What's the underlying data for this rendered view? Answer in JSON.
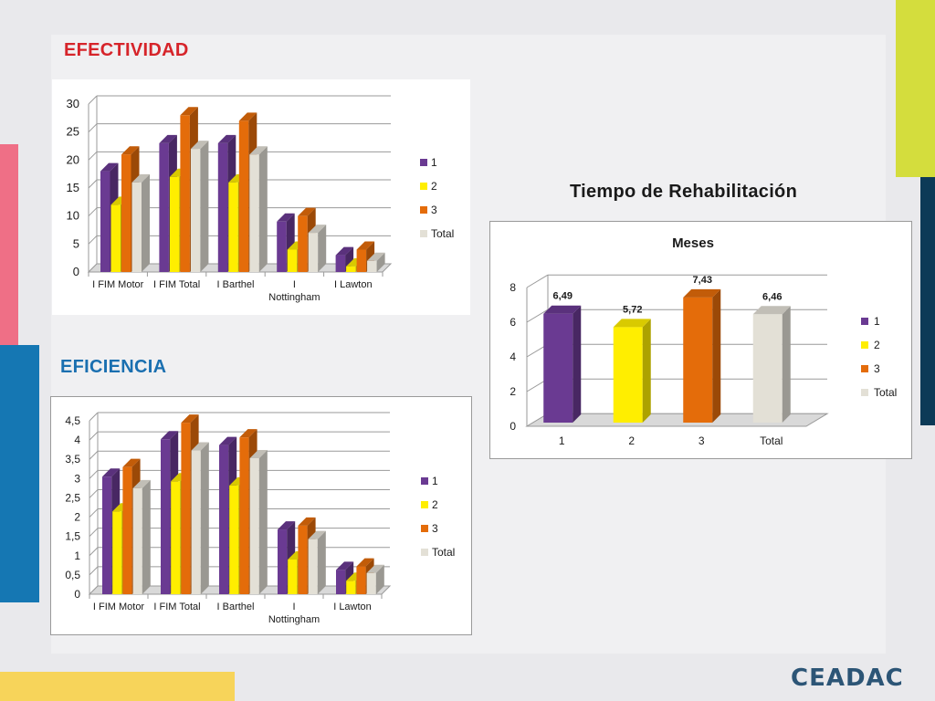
{
  "headings": {
    "efectividad": "EFECTIVIDAD",
    "eficiencia": "EFICIENCIA",
    "tiempo": "Tiempo de Rehabilitación"
  },
  "logo": "CEADAC",
  "colors": {
    "series_1": "#6a3a92",
    "series_2": "#ffee00",
    "series_3": "#e46c0a",
    "series_total": "#e3e0d6",
    "heading_red": "#d6242a",
    "heading_blue": "#1a6fb0"
  },
  "chart_data": [
    {
      "id": "efectividad",
      "type": "bar",
      "title": "",
      "categories": [
        [
          "I FIM Motor"
        ],
        [
          "I FIM Total"
        ],
        [
          "I Barthel"
        ],
        [
          "I",
          "Nottingham"
        ],
        [
          "I Lawton"
        ]
      ],
      "series": [
        {
          "name": "1",
          "values": [
            18,
            23,
            23,
            9,
            3
          ]
        },
        {
          "name": "2",
          "values": [
            12,
            17,
            16,
            4,
            1
          ]
        },
        {
          "name": "3",
          "values": [
            21,
            28,
            27,
            10,
            4
          ]
        },
        {
          "name": "Total",
          "values": [
            16,
            22,
            21,
            7,
            2
          ]
        }
      ],
      "ylim": [
        0,
        30
      ],
      "yticks": [
        "0",
        "5",
        "10",
        "15",
        "20",
        "25",
        "30"
      ],
      "grid": true,
      "legend": "right"
    },
    {
      "id": "eficiencia",
      "type": "bar",
      "title": "",
      "categories": [
        [
          "I FIM Motor"
        ],
        [
          "I  FIM Total"
        ],
        [
          "I  Barthel"
        ],
        [
          "I",
          "Nottingham"
        ],
        [
          "I Lawton"
        ]
      ],
      "series": [
        {
          "name": "1",
          "values": [
            3.05,
            4.02,
            3.87,
            1.68,
            0.63
          ]
        },
        {
          "name": "2",
          "values": [
            2.15,
            2.93,
            2.82,
            0.9,
            0.35
          ]
        },
        {
          "name": "3",
          "values": [
            3.3,
            4.45,
            4.07,
            1.78,
            0.72
          ]
        },
        {
          "name": "Total",
          "values": [
            2.75,
            3.73,
            3.53,
            1.43,
            0.55
          ]
        }
      ],
      "ylim": [
        0,
        4.5
      ],
      "yticks": [
        "0",
        "0,5",
        "1",
        "1,5",
        "2",
        "2,5",
        "3",
        "3,5",
        "4",
        "4,5"
      ],
      "grid": true,
      "legend": "right"
    },
    {
      "id": "meses",
      "type": "bar",
      "title": "Meses",
      "categories": [
        "1",
        "2",
        "3",
        "Total"
      ],
      "values": [
        6.49,
        5.72,
        7.43,
        6.46
      ],
      "data_labels": [
        "6,49",
        "5,72",
        "7,43",
        "6,46"
      ],
      "legend_entries": [
        "1",
        "2",
        "3",
        "Total"
      ],
      "ylim": [
        0,
        8
      ],
      "yticks": [
        "0",
        "2",
        "4",
        "6",
        "8"
      ],
      "grid": true,
      "legend": "right"
    }
  ]
}
